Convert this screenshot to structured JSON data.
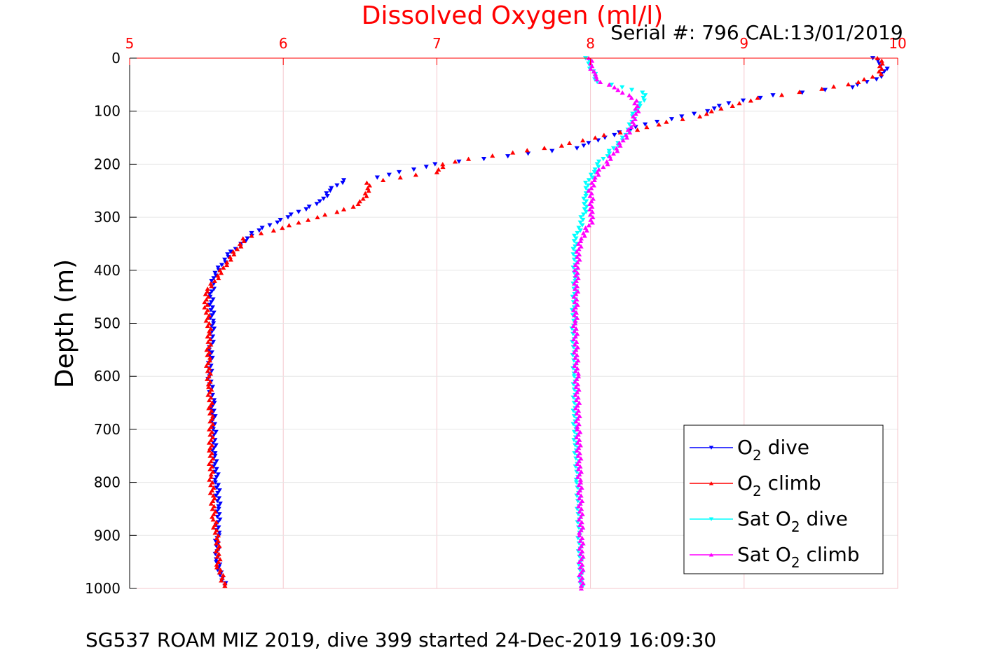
{
  "figure": {
    "title": "Dissolved Oxygen (ml/l)",
    "serial_text": "Serial #: 796  CAL:13/01/2019",
    "caption": "SG537 ROAM MIZ 2019, dive 399 started 24-Dec-2019 16:09:30",
    "colors": {
      "title": "#ff0000",
      "x_ticks": "#ff0000",
      "grid": "#f4c7cd",
      "axis": "#000000"
    }
  },
  "chart_data": {
    "type": "scatter",
    "title": "Dissolved Oxygen (ml/l)",
    "xlabel": "",
    "ylabel": "Depth (m)",
    "xlim": [
      5,
      10
    ],
    "ylim": [
      0,
      1000
    ],
    "y_reversed": true,
    "x_axis_position": "top",
    "x_ticks": [
      5,
      6,
      7,
      8,
      9,
      10
    ],
    "y_ticks": [
      0,
      100,
      200,
      300,
      400,
      500,
      600,
      700,
      800,
      900,
      1000
    ],
    "grid": true,
    "legend_position": "bottom-right",
    "series": [
      {
        "name": "O2 dive",
        "legend_label": {
          "main": "O",
          "sub": "2",
          "rest": " dive"
        },
        "color": "#0000ff",
        "marker": "triangle-down",
        "points": [
          [
            9.85,
            0
          ],
          [
            9.88,
            10
          ],
          [
            9.92,
            20
          ],
          [
            9.9,
            35
          ],
          [
            9.7,
            55
          ],
          [
            9.2,
            70
          ],
          [
            8.9,
            85
          ],
          [
            8.75,
            100
          ],
          [
            8.6,
            110
          ],
          [
            8.35,
            125
          ],
          [
            8.2,
            140
          ],
          [
            8.05,
            155
          ],
          [
            7.9,
            170
          ],
          [
            7.6,
            180
          ],
          [
            7.3,
            190
          ],
          [
            7.0,
            200
          ],
          [
            6.85,
            210
          ],
          [
            6.6,
            225
          ],
          [
            6.4,
            230
          ],
          [
            6.3,
            250
          ],
          [
            6.25,
            270
          ],
          [
            6.1,
            290
          ],
          [
            5.95,
            310
          ],
          [
            5.8,
            330
          ],
          [
            5.75,
            345
          ],
          [
            5.65,
            370
          ],
          [
            5.6,
            390
          ],
          [
            5.55,
            410
          ],
          [
            5.53,
            450
          ],
          [
            5.54,
            500
          ],
          [
            5.53,
            550
          ],
          [
            5.52,
            600
          ],
          [
            5.54,
            650
          ],
          [
            5.55,
            700
          ],
          [
            5.55,
            750
          ],
          [
            5.57,
            800
          ],
          [
            5.58,
            850
          ],
          [
            5.57,
            900
          ],
          [
            5.57,
            950
          ],
          [
            5.6,
            980
          ],
          [
            5.62,
            995
          ]
        ]
      },
      {
        "name": "O2 climb",
        "legend_label": {
          "main": "O",
          "sub": "2",
          "rest": " climb"
        },
        "color": "#ff0000",
        "marker": "triangle-up",
        "points": [
          [
            9.88,
            0
          ],
          [
            9.9,
            10
          ],
          [
            9.88,
            30
          ],
          [
            9.75,
            45
          ],
          [
            9.5,
            58
          ],
          [
            9.1,
            75
          ],
          [
            8.85,
            95
          ],
          [
            8.7,
            110
          ],
          [
            8.5,
            120
          ],
          [
            8.3,
            135
          ],
          [
            8.1,
            145
          ],
          [
            7.95,
            155
          ],
          [
            7.8,
            165
          ],
          [
            7.5,
            178
          ],
          [
            7.2,
            190
          ],
          [
            7.05,
            200
          ],
          [
            7.0,
            215
          ],
          [
            6.75,
            225
          ],
          [
            6.55,
            235
          ],
          [
            6.55,
            250
          ],
          [
            6.5,
            275
          ],
          [
            6.35,
            290
          ],
          [
            6.15,
            305
          ],
          [
            6.0,
            320
          ],
          [
            5.85,
            330
          ],
          [
            5.75,
            340
          ],
          [
            5.7,
            360
          ],
          [
            5.62,
            390
          ],
          [
            5.58,
            410
          ],
          [
            5.5,
            440
          ],
          [
            5.5,
            470
          ],
          [
            5.52,
            520
          ],
          [
            5.51,
            570
          ],
          [
            5.52,
            620
          ],
          [
            5.53,
            680
          ],
          [
            5.53,
            740
          ],
          [
            5.53,
            790
          ],
          [
            5.54,
            830
          ],
          [
            5.55,
            870
          ],
          [
            5.57,
            910
          ],
          [
            5.58,
            960
          ],
          [
            5.62,
            995
          ]
        ]
      },
      {
        "name": "Sat O2 dive",
        "legend_label": {
          "main": "Sat O",
          "sub": "2",
          "rest": " dive"
        },
        "color": "#00ffff",
        "marker": "triangle-down",
        "points": [
          [
            7.98,
            0
          ],
          [
            8.0,
            15
          ],
          [
            8.02,
            30
          ],
          [
            8.05,
            45
          ],
          [
            8.2,
            55
          ],
          [
            8.35,
            65
          ],
          [
            8.35,
            80
          ],
          [
            8.3,
            95
          ],
          [
            8.28,
            110
          ],
          [
            8.26,
            130
          ],
          [
            8.22,
            150
          ],
          [
            8.15,
            170
          ],
          [
            8.1,
            185
          ],
          [
            8.05,
            200
          ],
          [
            8.02,
            215
          ],
          [
            7.98,
            235
          ],
          [
            7.97,
            260
          ],
          [
            7.96,
            290
          ],
          [
            7.93,
            320
          ],
          [
            7.9,
            340
          ],
          [
            7.9,
            370
          ],
          [
            7.9,
            420
          ],
          [
            7.89,
            500
          ],
          [
            7.9,
            600
          ],
          [
            7.9,
            700
          ],
          [
            7.92,
            800
          ],
          [
            7.93,
            900
          ],
          [
            7.94,
            1000
          ]
        ]
      },
      {
        "name": "Sat O2 climb",
        "legend_label": {
          "main": "Sat O",
          "sub": "2",
          "rest": " climb"
        },
        "color": "#ff00ff",
        "marker": "triangle-up",
        "points": [
          [
            8.0,
            0
          ],
          [
            8.01,
            15
          ],
          [
            8.02,
            30
          ],
          [
            8.07,
            45
          ],
          [
            8.15,
            55
          ],
          [
            8.22,
            65
          ],
          [
            8.3,
            80
          ],
          [
            8.3,
            100
          ],
          [
            8.28,
            120
          ],
          [
            8.25,
            140
          ],
          [
            8.2,
            160
          ],
          [
            8.15,
            180
          ],
          [
            8.1,
            200
          ],
          [
            8.05,
            215
          ],
          [
            8.02,
            230
          ],
          [
            8.0,
            250
          ],
          [
            8.01,
            280
          ],
          [
            8.0,
            310
          ],
          [
            7.96,
            330
          ],
          [
            7.93,
            345
          ],
          [
            7.91,
            400
          ],
          [
            7.9,
            500
          ],
          [
            7.91,
            600
          ],
          [
            7.92,
            700
          ],
          [
            7.93,
            800
          ],
          [
            7.94,
            900
          ],
          [
            7.94,
            1000
          ]
        ]
      }
    ]
  }
}
